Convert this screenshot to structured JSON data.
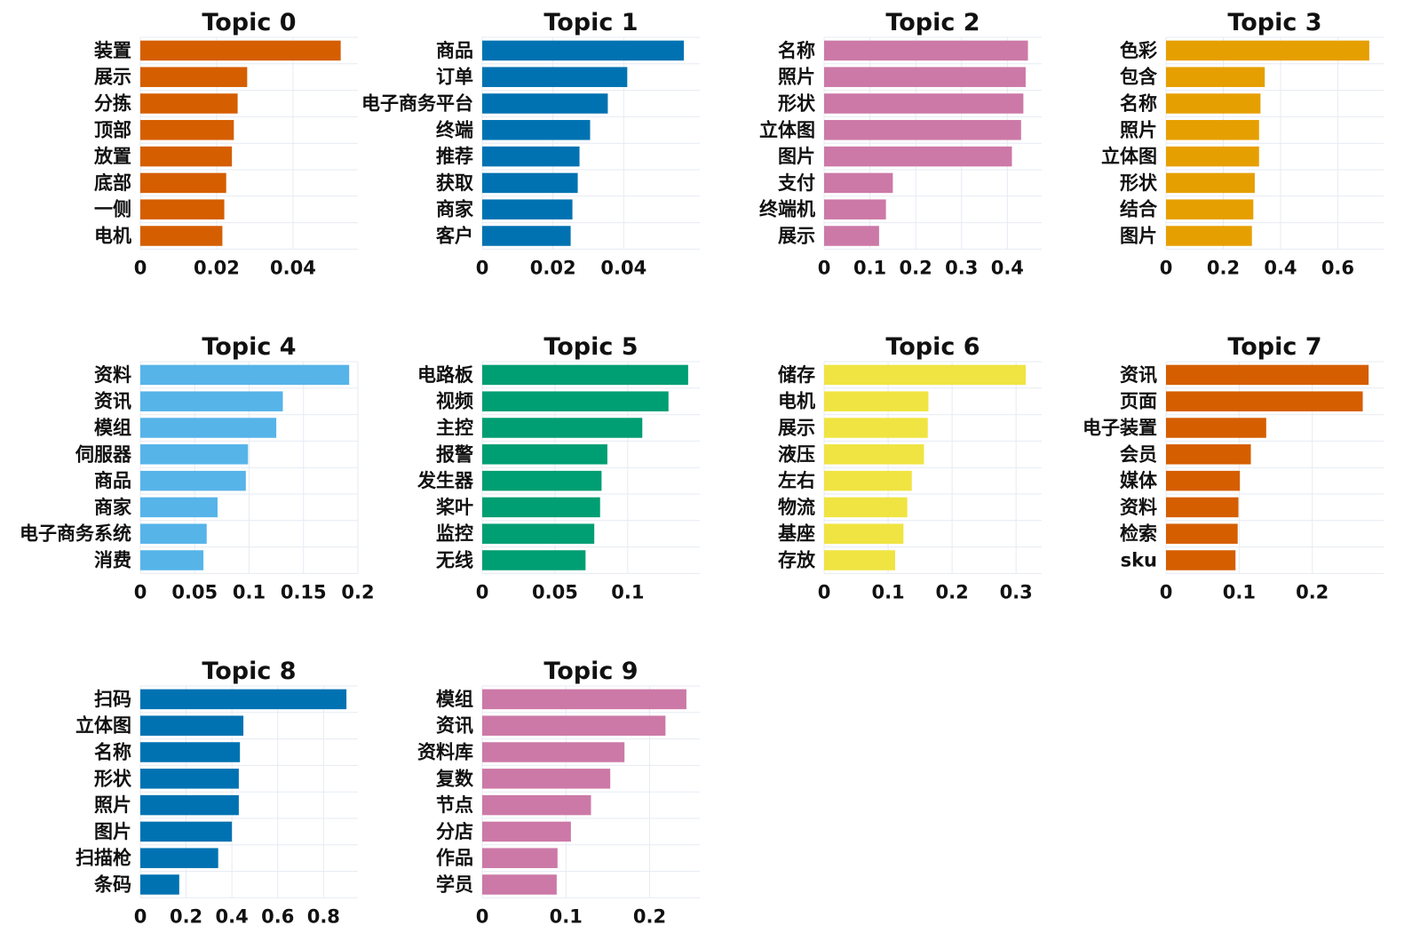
{
  "chart_data": [
    {
      "type": "bar",
      "orientation": "horizontal",
      "title": "Topic 0",
      "color": "#d55e00",
      "categories": [
        "装置",
        "展示",
        "分拣",
        "顶部",
        "放置",
        "底部",
        "一侧",
        "电机"
      ],
      "values": [
        0.0525,
        0.028,
        0.0255,
        0.0245,
        0.024,
        0.0225,
        0.022,
        0.0215
      ],
      "xlim": [
        0,
        0.057
      ],
      "ticks": [
        0,
        0.02,
        0.04
      ],
      "tick_labels": [
        "0",
        "0.02",
        "0.04"
      ]
    },
    {
      "type": "bar",
      "orientation": "horizontal",
      "title": "Topic 1",
      "color": "#0072b2",
      "categories": [
        "商品",
        "订单",
        "电子商务平台",
        "终端",
        "推荐",
        "获取",
        "商家",
        "客户"
      ],
      "values": [
        0.057,
        0.041,
        0.0355,
        0.0305,
        0.0275,
        0.027,
        0.0255,
        0.025
      ],
      "xlim": [
        0,
        0.0615
      ],
      "ticks": [
        0,
        0.02,
        0.04
      ],
      "tick_labels": [
        "0",
        "0.02",
        "0.04"
      ]
    },
    {
      "type": "bar",
      "orientation": "horizontal",
      "title": "Topic 2",
      "color": "#cc79a7",
      "categories": [
        "名称",
        "照片",
        "形状",
        "立体图",
        "图片",
        "支付",
        "终端机",
        "展示"
      ],
      "values": [
        0.445,
        0.44,
        0.435,
        0.43,
        0.41,
        0.15,
        0.135,
        0.12
      ],
      "xlim": [
        0,
        0.475
      ],
      "ticks": [
        0,
        0.1,
        0.2,
        0.3,
        0.4
      ],
      "tick_labels": [
        "0",
        "0.1",
        "0.2",
        "0.3",
        "0.4"
      ]
    },
    {
      "type": "bar",
      "orientation": "horizontal",
      "title": "Topic 3",
      "color": "#e69f00",
      "categories": [
        "色彩",
        "包含",
        "名称",
        "照片",
        "立体图",
        "形状",
        "结合",
        "图片"
      ],
      "values": [
        0.71,
        0.345,
        0.33,
        0.325,
        0.325,
        0.31,
        0.305,
        0.3
      ],
      "xlim": [
        0,
        0.76
      ],
      "ticks": [
        0,
        0.2,
        0.4,
        0.6
      ],
      "tick_labels": [
        "0",
        "0.2",
        "0.4",
        "0.6"
      ]
    },
    {
      "type": "bar",
      "orientation": "horizontal",
      "title": "Topic 4",
      "color": "#56b4e9",
      "categories": [
        "资料",
        "资讯",
        "模组",
        "伺服器",
        "商品",
        "商家",
        "电子商务系统",
        "消费"
      ],
      "values": [
        0.192,
        0.131,
        0.125,
        0.099,
        0.097,
        0.071,
        0.061,
        0.058
      ],
      "xlim": [
        0,
        0.2
      ],
      "ticks": [
        0,
        0.05,
        0.1,
        0.15,
        0.2
      ],
      "tick_labels": [
        "0",
        "0.05",
        "0.1",
        "0.15",
        "0.2"
      ]
    },
    {
      "type": "bar",
      "orientation": "horizontal",
      "title": "Topic 5",
      "color": "#009e73",
      "categories": [
        "电路板",
        "视频",
        "主控",
        "报警",
        "发生器",
        "桨叶",
        "监控",
        "无线"
      ],
      "values": [
        0.1415,
        0.128,
        0.11,
        0.086,
        0.082,
        0.081,
        0.077,
        0.071
      ],
      "xlim": [
        0,
        0.1495
      ],
      "ticks": [
        0,
        0.05,
        0.1
      ],
      "tick_labels": [
        "0",
        "0.05",
        "0.1"
      ]
    },
    {
      "type": "bar",
      "orientation": "horizontal",
      "title": "Topic 6",
      "color": "#f0e442",
      "categories": [
        "储存",
        "电机",
        "展示",
        "液压",
        "左右",
        "物流",
        "基座",
        "存放"
      ],
      "values": [
        0.315,
        0.163,
        0.162,
        0.156,
        0.137,
        0.13,
        0.124,
        0.111
      ],
      "xlim": [
        0,
        0.34
      ],
      "ticks": [
        0,
        0.1,
        0.2,
        0.3
      ],
      "tick_labels": [
        "0",
        "0.1",
        "0.2",
        "0.3"
      ]
    },
    {
      "type": "bar",
      "orientation": "horizontal",
      "title": "Topic 7",
      "color": "#d55e00",
      "categories": [
        "资讯",
        "页面",
        "电子装置",
        "会员",
        "媒体",
        "资料",
        "检索",
        "sku"
      ],
      "values": [
        0.277,
        0.269,
        0.137,
        0.116,
        0.101,
        0.099,
        0.098,
        0.095
      ],
      "xlim": [
        0,
        0.2975
      ],
      "ticks": [
        0,
        0.1,
        0.2
      ],
      "tick_labels": [
        "0",
        "0.1",
        "0.2"
      ]
    },
    {
      "type": "bar",
      "orientation": "horizontal",
      "title": "Topic 8",
      "color": "#0072b2",
      "categories": [
        "扫码",
        "立体图",
        "名称",
        "形状",
        "照片",
        "图片",
        "扫描枪",
        "条码"
      ],
      "values": [
        0.9,
        0.45,
        0.435,
        0.43,
        0.43,
        0.4,
        0.34,
        0.17
      ],
      "xlim": [
        0,
        0.95
      ],
      "ticks": [
        0,
        0.2,
        0.4,
        0.6,
        0.8
      ],
      "tick_labels": [
        "0",
        "0.2",
        "0.4",
        "0.6",
        "0.8"
      ]
    },
    {
      "type": "bar",
      "orientation": "horizontal",
      "title": "Topic 9",
      "color": "#cc79a7",
      "categories": [
        "模组",
        "资讯",
        "资料库",
        "复数",
        "节点",
        "分店",
        "作品",
        "学员"
      ],
      "values": [
        0.244,
        0.219,
        0.17,
        0.153,
        0.13,
        0.106,
        0.09,
        0.089
      ],
      "xlim": [
        0,
        0.26
      ],
      "ticks": [
        0,
        0.1,
        0.2
      ],
      "tick_labels": [
        "0",
        "0.1",
        "0.2"
      ]
    }
  ]
}
